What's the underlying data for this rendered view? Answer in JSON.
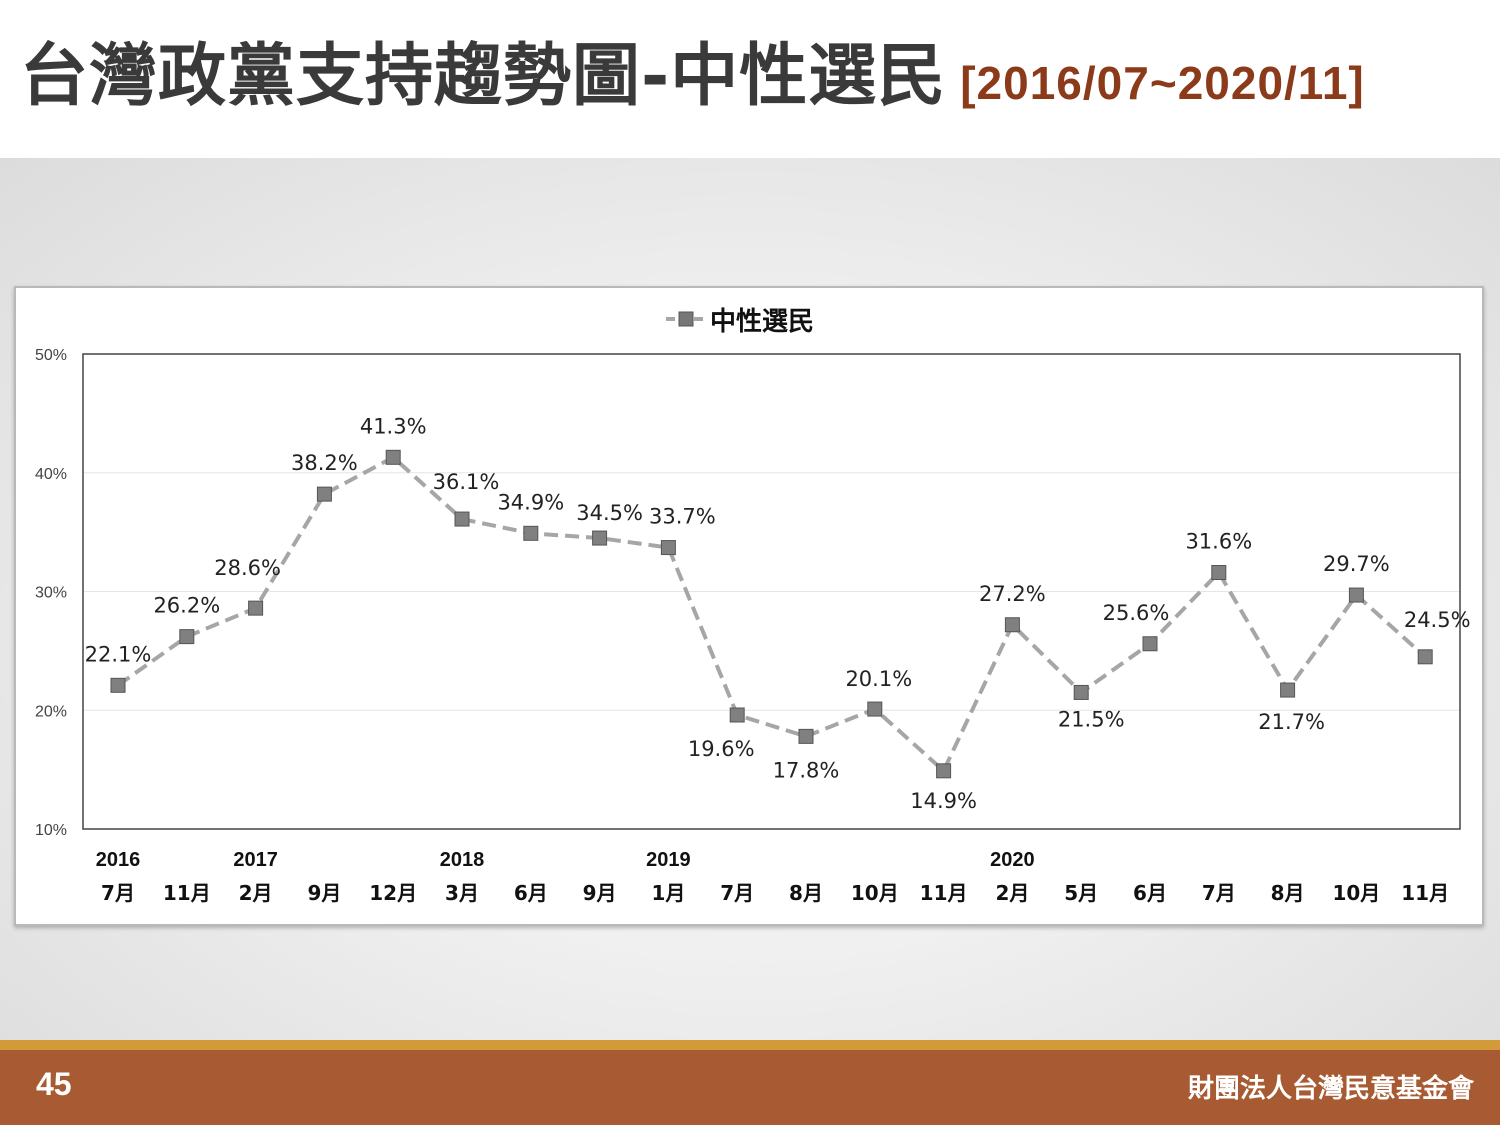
{
  "header": {
    "title": "台灣政黨支持趨勢圖-中性選民",
    "range": "[2016/07~2020/11]"
  },
  "footer": {
    "page_number": "45",
    "organization": "財團法人台灣民意基金會"
  },
  "colors": {
    "title": "#3a3a3a",
    "range": "#8b3a1a",
    "series": "#a6a6a6",
    "footer": "#a85a32",
    "footer_accent": "#d39a3a"
  },
  "chart_data": {
    "type": "line",
    "legend_position": "top-center",
    "grid": true,
    "ylim": [
      10,
      50
    ],
    "y_ticks": [
      "10%",
      "20%",
      "30%",
      "40%",
      "50%"
    ],
    "y_tick_values": [
      10,
      20,
      30,
      40,
      50
    ],
    "years": [
      "2016",
      "",
      "2017",
      "",
      "",
      "2018",
      "",
      "",
      "2019",
      "",
      "",
      "",
      "",
      "2020",
      "",
      "",
      "",
      "",
      "",
      ""
    ],
    "categories": [
      "7月",
      "11月",
      "2月",
      "9月",
      "12月",
      "3月",
      "6月",
      "9月",
      "1月",
      "7月",
      "8月",
      "10月",
      "11月",
      "2月",
      "5月",
      "6月",
      "7月",
      "8月",
      "10月",
      "11月"
    ],
    "series": [
      {
        "name": "中性選民",
        "values": [
          22.1,
          26.2,
          28.6,
          38.2,
          41.3,
          36.1,
          34.9,
          34.5,
          33.7,
          19.6,
          17.8,
          20.1,
          14.9,
          27.2,
          21.5,
          25.6,
          31.6,
          21.7,
          29.7,
          24.5
        ],
        "labels": [
          "22.1%",
          "26.2%",
          "28.6%",
          "38.2%",
          "41.3%",
          "36.1%",
          "34.9%",
          "34.5%",
          "33.7%",
          "19.6%",
          "17.8%",
          "20.1%",
          "14.9%",
          "27.2%",
          "21.5%",
          "25.6%",
          "31.6%",
          "21.7%",
          "29.7%",
          "24.5%"
        ]
      }
    ]
  }
}
